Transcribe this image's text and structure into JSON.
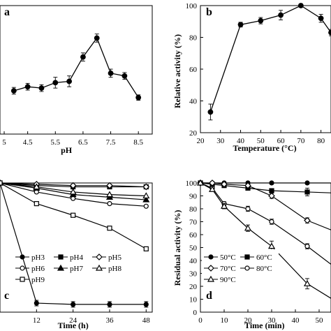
{
  "chart_data": [
    {
      "type": "line",
      "panel_label": "a",
      "xlabel": "pH",
      "ylabel": "",
      "xlim": [
        3.5,
        9
      ],
      "ylim": [
        0,
        95
      ],
      "xticks": [
        "5",
        "4.5",
        "5.5",
        "6.5",
        "7.5",
        "8.5"
      ],
      "series": [
        {
          "x": [
            4.0,
            4.5,
            5.0,
            5.5,
            6.0,
            6.5,
            7.0,
            7.5,
            8.0,
            8.5
          ],
          "y": [
            32,
            35,
            34,
            38,
            39,
            57,
            71,
            45,
            43,
            27
          ],
          "err": [
            2.5,
            2.5,
            2.5,
            4,
            4,
            3,
            3,
            3,
            2.5,
            2
          ]
        }
      ]
    },
    {
      "type": "line",
      "panel_label": "b",
      "xlabel": "Temperature (°C)",
      "ylabel": "Relative activity (%)",
      "xlim": [
        20,
        85
      ],
      "ylim": [
        20,
        100
      ],
      "yticks": [
        "20",
        "40",
        "60",
        "80",
        "100"
      ],
      "xticks": [
        "20",
        "30",
        "40",
        "50",
        "60",
        "70",
        "80"
      ],
      "series": [
        {
          "x": [
            25,
            40,
            50,
            60,
            70,
            80,
            85
          ],
          "y": [
            33,
            88,
            90.5,
            94,
            100,
            92,
            83
          ],
          "err": [
            5,
            1.5,
            2,
            3,
            1,
            2.5,
            2
          ]
        }
      ]
    },
    {
      "type": "line",
      "panel_label": "c",
      "xlabel": "Time (h)",
      "ylabel": "",
      "xlim": [
        0,
        50
      ],
      "ylim": [
        0,
        100
      ],
      "xticks": [
        "12",
        "24",
        "36",
        "48"
      ],
      "series": [
        {
          "name": "pH3",
          "marker": "circle-filled",
          "x": [
            0,
            12,
            24,
            36,
            48
          ],
          "y": [
            100,
            7,
            6,
            6,
            6
          ]
        },
        {
          "name": "pH4",
          "marker": "square-filled",
          "x": [
            0,
            12,
            24,
            36,
            48
          ],
          "y": [
            100,
            98,
            97,
            97,
            97
          ]
        },
        {
          "name": "pH5",
          "marker": "diamond-open",
          "x": [
            0,
            12,
            24,
            36,
            48
          ],
          "y": [
            100,
            99,
            98,
            98,
            97
          ]
        },
        {
          "name": "pH6",
          "marker": "circle-open",
          "x": [
            0,
            12,
            24,
            36,
            48
          ],
          "y": [
            100,
            93,
            88,
            84,
            82
          ]
        },
        {
          "name": "pH7",
          "marker": "triangle-filled",
          "x": [
            0,
            12,
            24,
            36,
            48
          ],
          "y": [
            100,
            96,
            91,
            89,
            87
          ]
        },
        {
          "name": "pH8",
          "marker": "triangle-open",
          "x": [
            0,
            12,
            24,
            36,
            48
          ],
          "y": [
            100,
            97,
            93,
            91,
            90
          ]
        },
        {
          "name": "pH9",
          "marker": "square-open",
          "x": [
            0,
            12,
            24,
            36,
            48
          ],
          "y": [
            100,
            84,
            75,
            65,
            49
          ]
        }
      ]
    },
    {
      "type": "line",
      "panel_label": "d",
      "xlabel": "Time (min)",
      "ylabel": "Residual activity (%)",
      "xlim": [
        0,
        55
      ],
      "ylim": [
        0,
        100
      ],
      "yticks": [
        "0",
        "10",
        "20",
        "30",
        "40",
        "50",
        "60",
        "70",
        "80",
        "90",
        "100"
      ],
      "xticks": [
        "0",
        "10",
        "20",
        "30",
        "40",
        "50"
      ],
      "series": [
        {
          "name": "50°C",
          "marker": "circle-filled",
          "x": [
            0,
            5,
            10,
            20,
            30,
            45,
            60
          ],
          "y": [
            100,
            100,
            100,
            100,
            100,
            100,
            100
          ]
        },
        {
          "name": "60°C",
          "marker": "square-filled",
          "x": [
            0,
            5,
            10,
            20,
            30,
            45,
            60
          ],
          "y": [
            100,
            99,
            98,
            96,
            94,
            93,
            92
          ]
        },
        {
          "name": "70°C",
          "marker": "diamond-open",
          "x": [
            0,
            5,
            10,
            20,
            30,
            45,
            60
          ],
          "y": [
            100,
            100,
            99,
            98,
            90,
            71,
            60
          ]
        },
        {
          "name": "80°C",
          "marker": "circle-open",
          "x": [
            0,
            5,
            10,
            20,
            30,
            45,
            60
          ],
          "y": [
            100,
            96,
            84,
            80,
            70,
            51,
            30
          ]
        },
        {
          "name": "90°C",
          "marker": "triangle-open",
          "x": [
            0,
            5,
            10,
            20,
            30,
            45,
            60
          ],
          "y": [
            100,
            95,
            82,
            65,
            51,
            22,
            5
          ]
        }
      ]
    }
  ]
}
